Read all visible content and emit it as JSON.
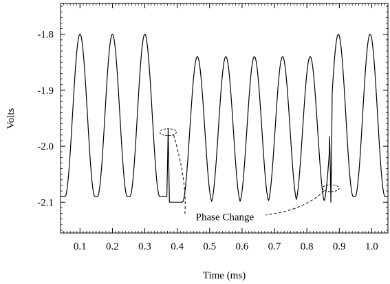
{
  "chart_data": {
    "type": "line",
    "xlabel": "Time (ms)",
    "ylabel": "Volts",
    "xlim": [
      0.04,
      1.05
    ],
    "ylim": [
      -2.155,
      -1.745
    ],
    "xticks": [
      "0.1",
      "0.2",
      "0.3",
      "0.4",
      "0.5",
      "0.6",
      "0.7",
      "0.8",
      "0.9",
      "1.0"
    ],
    "yticks": [
      "-1.8",
      "-1.9",
      "-2.0",
      "-2.1"
    ],
    "grid": false,
    "waveform": {
      "period_ms": 0.0925,
      "low_amp_interval_ms": [
        0.37,
        0.87
      ],
      "high_amp_envelope_V": [
        -2.09,
        -1.8
      ],
      "low_amp_envelope_V": [
        -2.1,
        -1.84
      ],
      "peaks": [
        {
          "x": 0.1,
          "y": -1.8
        },
        {
          "x": 0.2,
          "y": -1.8
        },
        {
          "x": 0.3,
          "y": -1.8
        },
        {
          "x": 0.462,
          "y": -1.84
        },
        {
          "x": 0.55,
          "y": -1.84
        },
        {
          "x": 0.638,
          "y": -1.84
        },
        {
          "x": 0.725,
          "y": -1.84
        },
        {
          "x": 0.81,
          "y": -1.84
        },
        {
          "x": 0.897,
          "y": -1.8
        },
        {
          "x": 0.995,
          "y": -1.8
        }
      ],
      "glitches": [
        {
          "x": 0.372,
          "from": -2.09,
          "to": -1.97
        },
        {
          "x": 0.874,
          "from": -1.85,
          "to": -2.1
        }
      ]
    },
    "annotations": [
      {
        "text": "Phase Change",
        "x": 0.47,
        "y": -2.13,
        "points_to": [
          [
            0.372,
            -1.975
          ],
          [
            0.874,
            -2.075
          ]
        ]
      }
    ]
  }
}
